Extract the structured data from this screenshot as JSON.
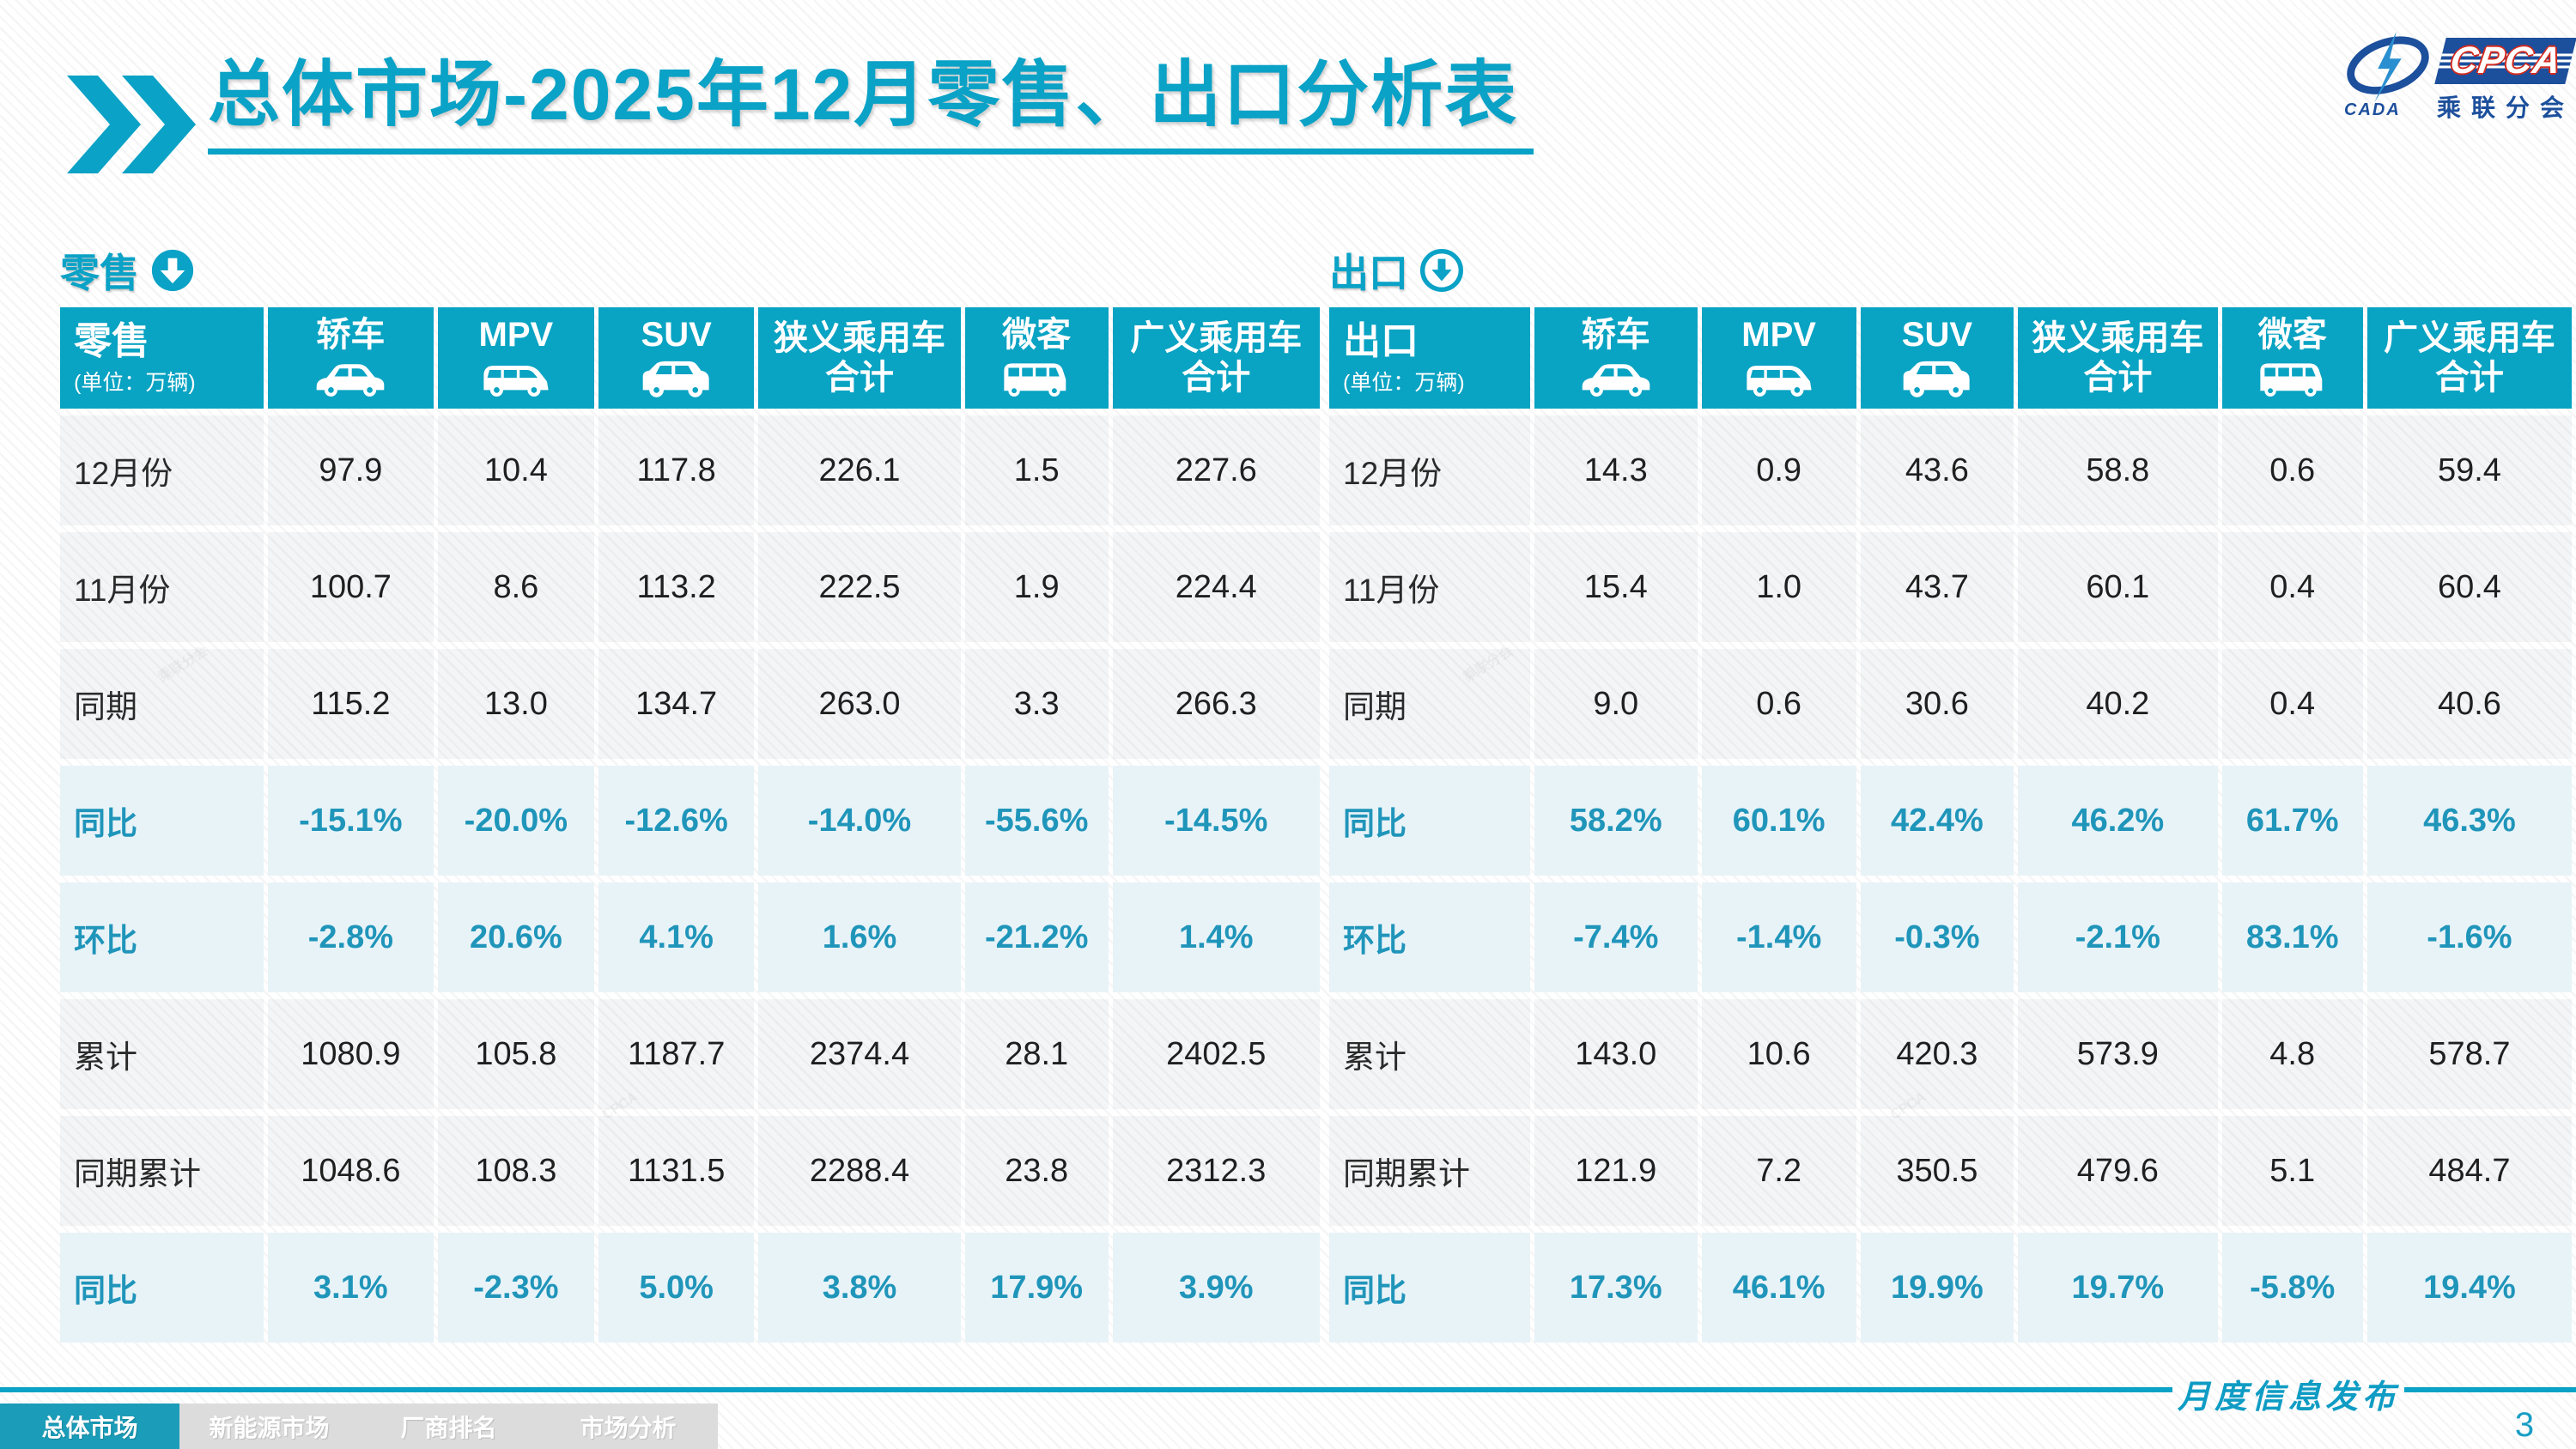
{
  "title": {
    "text": "总体市场-2025年12月零售、出口分析表"
  },
  "logo": {
    "cada_label": "CADA",
    "cpca_label": "CPCA",
    "subtitle": "乘联分会"
  },
  "unit_note": "(单位：万辆)",
  "columns": [
    {
      "label": "轿车",
      "icon": "sedan-icon"
    },
    {
      "label": "MPV",
      "icon": "mpv-icon"
    },
    {
      "label": "SUV",
      "icon": "suv-icon"
    },
    {
      "label": "狭义乘用车",
      "label2": "合计"
    },
    {
      "label": "微客",
      "icon": "minibus-icon"
    },
    {
      "label": "广义乘用车",
      "label2": "合计"
    }
  ],
  "retail": {
    "section_label": "零售",
    "corner_label": "零售",
    "rows": [
      {
        "label": "12月份",
        "highlight": false,
        "values": [
          "97.9",
          "10.4",
          "117.8",
          "226.1",
          "1.5",
          "227.6"
        ]
      },
      {
        "label": "11月份",
        "highlight": false,
        "values": [
          "100.7",
          "8.6",
          "113.2",
          "222.5",
          "1.9",
          "224.4"
        ]
      },
      {
        "label": "同期",
        "highlight": false,
        "values": [
          "115.2",
          "13.0",
          "134.7",
          "263.0",
          "3.3",
          "266.3"
        ]
      },
      {
        "label": "同比",
        "highlight": true,
        "values": [
          "-15.1%",
          "-20.0%",
          "-12.6%",
          "-14.0%",
          "-55.6%",
          "-14.5%"
        ]
      },
      {
        "label": "环比",
        "highlight": true,
        "values": [
          "-2.8%",
          "20.6%",
          "4.1%",
          "1.6%",
          "-21.2%",
          "1.4%"
        ]
      },
      {
        "label": "累计",
        "highlight": false,
        "values": [
          "1080.9",
          "105.8",
          "1187.7",
          "2374.4",
          "28.1",
          "2402.5"
        ]
      },
      {
        "label": "同期累计",
        "highlight": false,
        "values": [
          "1048.6",
          "108.3",
          "1131.5",
          "2288.4",
          "23.8",
          "2312.3"
        ]
      },
      {
        "label": "同比",
        "highlight": true,
        "values": [
          "3.1%",
          "-2.3%",
          "5.0%",
          "3.8%",
          "17.9%",
          "3.9%"
        ]
      }
    ]
  },
  "export": {
    "section_label": "出口",
    "corner_label": "出口",
    "rows": [
      {
        "label": "12月份",
        "highlight": false,
        "values": [
          "14.3",
          "0.9",
          "43.6",
          "58.8",
          "0.6",
          "59.4"
        ]
      },
      {
        "label": "11月份",
        "highlight": false,
        "values": [
          "15.4",
          "1.0",
          "43.7",
          "60.1",
          "0.4",
          "60.4"
        ]
      },
      {
        "label": "同期",
        "highlight": false,
        "values": [
          "9.0",
          "0.6",
          "30.6",
          "40.2",
          "0.4",
          "40.6"
        ]
      },
      {
        "label": "同比",
        "highlight": true,
        "values": [
          "58.2%",
          "60.1%",
          "42.4%",
          "46.2%",
          "61.7%",
          "46.3%"
        ]
      },
      {
        "label": "环比",
        "highlight": true,
        "values": [
          "-7.4%",
          "-1.4%",
          "-0.3%",
          "-2.1%",
          "83.1%",
          "-1.6%"
        ]
      },
      {
        "label": "累计",
        "highlight": false,
        "values": [
          "143.0",
          "10.6",
          "420.3",
          "573.9",
          "4.8",
          "578.7"
        ]
      },
      {
        "label": "同期累计",
        "highlight": false,
        "values": [
          "121.9",
          "7.2",
          "350.5",
          "479.6",
          "5.1",
          "484.7"
        ]
      },
      {
        "label": "同比",
        "highlight": true,
        "values": [
          "17.3%",
          "46.1%",
          "19.9%",
          "19.7%",
          "-5.8%",
          "19.4%"
        ]
      }
    ]
  },
  "footer": {
    "publication": "月度信息发布",
    "page_number": "3"
  },
  "nav": {
    "tabs": [
      {
        "label": "总体市场",
        "active": true
      },
      {
        "label": "新能源市场",
        "active": false
      },
      {
        "label": "厂商排名",
        "active": false
      },
      {
        "label": "市场分析",
        "active": false
      }
    ]
  },
  "colors": {
    "accent_teal": "#0aa2c6",
    "table_header_bg": "#09a3c3",
    "highlight_row_bg": "#e8f3f8",
    "highlight_text": "#2095ba",
    "data_text": "#1f1f1f",
    "nav_active_bg": "#1b9cb8",
    "nav_inactive_bg": "#dcdcdc",
    "logo_navy": "#1c4f9c",
    "logo_red": "#d42a1e"
  },
  "chart_data": {
    "type": "table",
    "tables": [
      {
        "name": "零售 (单位：万辆)",
        "columns": [
          "轿车",
          "MPV",
          "SUV",
          "狭义乘用车合计",
          "微客",
          "广义乘用车合计"
        ],
        "rows": {
          "12月份": [
            97.9,
            10.4,
            117.8,
            226.1,
            1.5,
            227.6
          ],
          "11月份": [
            100.7,
            8.6,
            113.2,
            222.5,
            1.9,
            224.4
          ],
          "同期": [
            115.2,
            13.0,
            134.7,
            263.0,
            3.3,
            266.3
          ],
          "同比": [
            "-15.1%",
            "-20.0%",
            "-12.6%",
            "-14.0%",
            "-55.6%",
            "-14.5%"
          ],
          "环比": [
            "-2.8%",
            "20.6%",
            "4.1%",
            "1.6%",
            "-21.2%",
            "1.4%"
          ],
          "累计": [
            1080.9,
            105.8,
            1187.7,
            2374.4,
            28.1,
            2402.5
          ],
          "同期累计": [
            1048.6,
            108.3,
            1131.5,
            2288.4,
            23.8,
            2312.3
          ],
          "累计同比": [
            "3.1%",
            "-2.3%",
            "5.0%",
            "3.8%",
            "17.9%",
            "3.9%"
          ]
        }
      },
      {
        "name": "出口 (单位：万辆)",
        "columns": [
          "轿车",
          "MPV",
          "SUV",
          "狭义乘用车合计",
          "微客",
          "广义乘用车合计"
        ],
        "rows": {
          "12月份": [
            14.3,
            0.9,
            43.6,
            58.8,
            0.6,
            59.4
          ],
          "11月份": [
            15.4,
            1.0,
            43.7,
            60.1,
            0.4,
            60.4
          ],
          "同期": [
            9.0,
            0.6,
            30.6,
            40.2,
            0.4,
            40.6
          ],
          "同比": [
            "58.2%",
            "60.1%",
            "42.4%",
            "46.2%",
            "61.7%",
            "46.3%"
          ],
          "环比": [
            "-7.4%",
            "-1.4%",
            "-0.3%",
            "-2.1%",
            "83.1%",
            "-1.6%"
          ],
          "累计": [
            143.0,
            10.6,
            420.3,
            573.9,
            4.8,
            578.7
          ],
          "同期累计": [
            121.9,
            7.2,
            350.5,
            479.6,
            5.1,
            484.7
          ],
          "累计同比": [
            "17.3%",
            "46.1%",
            "19.9%",
            "19.7%",
            "-5.8%",
            "19.4%"
          ]
        }
      }
    ]
  }
}
